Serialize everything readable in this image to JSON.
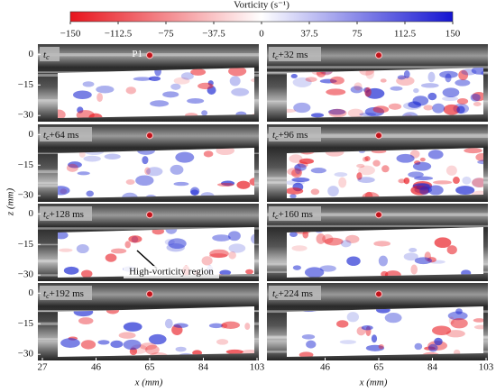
{
  "colorbar": {
    "title": "Vorticity (s⁻¹)",
    "range": [
      -150,
      150
    ],
    "ticks": [
      {
        "value": -150,
        "label": "−150"
      },
      {
        "value": -112.5,
        "label": "−112.5"
      },
      {
        "value": -75,
        "label": "−75"
      },
      {
        "value": -37.5,
        "label": "−37.5"
      },
      0,
      37.5,
      75,
      112.5,
      150
    ]
  },
  "axes": {
    "z_title": "z (mm)",
    "x_title": "x (mm)",
    "zlim": [
      5,
      -33
    ],
    "zticks": [
      0,
      {
        "value": -15,
        "label": "−15"
      },
      {
        "value": -30,
        "label": "−30"
      }
    ],
    "xlim": [
      27,
      103
    ],
    "xticks": [
      27,
      46,
      65,
      84,
      103
    ]
  },
  "panels": [
    {
      "t": "t",
      "sub": "c"
    },
    {
      "t": "t",
      "sub": "c",
      "suffix": "+32 ms"
    },
    {
      "t": "t",
      "sub": "c",
      "suffix": "+64 ms"
    },
    {
      "t": "t",
      "sub": "c",
      "suffix": "+96 ms"
    },
    {
      "t": "t",
      "sub": "c",
      "suffix": "+128 ms"
    },
    {
      "t": "t",
      "sub": "c",
      "suffix": "+160 ms"
    },
    {
      "t": "t",
      "sub": "c",
      "suffix": "+192 ms"
    },
    {
      "t": "t",
      "sub": "c",
      "suffix": "+224 ms"
    }
  ],
  "probe": {
    "label": "P1"
  },
  "annotation": "High-vorticity region"
}
